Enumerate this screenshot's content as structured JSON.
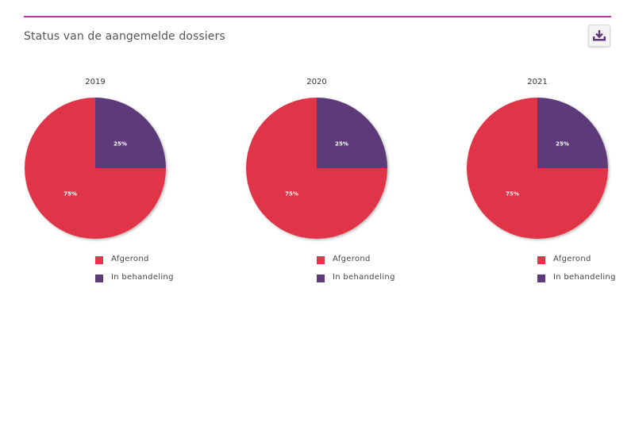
{
  "page": {
    "title": "Status van de aangemelde dossiers"
  },
  "toolbar": {
    "download_icon": "download-tray-icon"
  },
  "colors": {
    "accent": "#b5389a",
    "afgerond": "#e0364a",
    "in_behandeling": "#5d3a7a"
  },
  "chart_data": [
    {
      "type": "pie",
      "title": "2019",
      "labels": [
        "Afgerond",
        "In behandeling"
      ],
      "values": [
        75,
        25
      ],
      "data_labels": [
        "75%",
        "25%"
      ],
      "colors": [
        "#e0364a",
        "#5d3a7a"
      ],
      "legend": "bottom"
    },
    {
      "type": "pie",
      "title": "2020",
      "labels": [
        "Afgerond",
        "In behandeling"
      ],
      "values": [
        75,
        25
      ],
      "data_labels": [
        "75%",
        "25%"
      ],
      "colors": [
        "#e0364a",
        "#5d3a7a"
      ],
      "legend": "bottom"
    },
    {
      "type": "pie",
      "title": "2021",
      "labels": [
        "Afgerond",
        "In behandeling"
      ],
      "values": [
        75,
        25
      ],
      "data_labels": [
        "75%",
        "25%"
      ],
      "colors": [
        "#e0364a",
        "#5d3a7a"
      ],
      "legend": "bottom"
    }
  ]
}
